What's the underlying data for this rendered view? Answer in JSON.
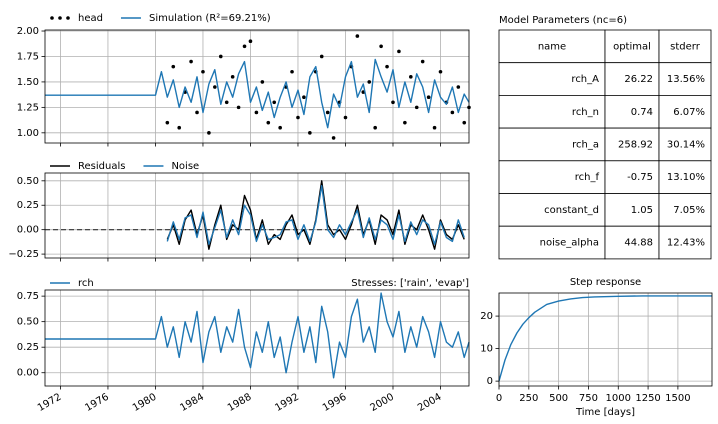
{
  "chart_data": [
    {
      "type": "line",
      "x": [
        1970.7,
        1980.0,
        1980.5,
        1981.0,
        1981.5,
        1982.0,
        1982.5,
        1983.0,
        1983.5,
        1984.0,
        1984.5,
        1985.0,
        1985.5,
        1986.0,
        1986.5,
        1987.0,
        1987.5,
        1988.0,
        1988.5,
        1989.0,
        1989.5,
        1990.0,
        1990.5,
        1991.0,
        1991.5,
        1992.0,
        1992.5,
        1993.0,
        1993.5,
        1994.0,
        1994.5,
        1995.0,
        1995.5,
        1996.0,
        1996.5,
        1997.0,
        1997.5,
        1998.0,
        1998.5,
        1999.0,
        1999.5,
        2000.0,
        2000.5,
        2001.0,
        2001.5,
        2002.0,
        2002.5,
        2003.0,
        2003.5,
        2004.0,
        2004.5,
        2005.0,
        2005.5,
        2006.0,
        2006.4
      ],
      "series": [
        {
          "name": "head",
          "color": "#000000",
          "style": "dots",
          "values": [
            null,
            null,
            null,
            1.1,
            1.65,
            1.05,
            1.4,
            1.7,
            1.2,
            1.6,
            1.0,
            1.45,
            1.75,
            1.3,
            1.55,
            1.25,
            1.85,
            1.9,
            1.2,
            1.5,
            1.1,
            1.3,
            1.05,
            1.45,
            1.6,
            1.15,
            1.35,
            1.0,
            1.6,
            1.75,
            1.2,
            0.95,
            1.3,
            1.15,
            1.65,
            1.95,
            1.4,
            1.5,
            1.05,
            1.85,
            1.65,
            1.3,
            1.8,
            1.1,
            1.55,
            1.25,
            1.7,
            1.35,
            1.05,
            1.6,
            1.3,
            1.2,
            1.45,
            1.1,
            1.25
          ]
        },
        {
          "name": "Simulation (R²=69.21%)",
          "color": "#1f77b4",
          "style": "line",
          "values": [
            1.37,
            1.37,
            1.6,
            1.35,
            1.52,
            1.25,
            1.45,
            1.3,
            1.55,
            1.2,
            1.48,
            1.62,
            1.28,
            1.5,
            1.35,
            1.58,
            1.7,
            1.3,
            1.45,
            1.22,
            1.4,
            1.15,
            1.35,
            1.5,
            1.25,
            1.42,
            1.18,
            1.55,
            1.65,
            1.3,
            1.05,
            1.38,
            1.25,
            1.55,
            1.7,
            1.35,
            1.48,
            1.2,
            1.72,
            1.55,
            1.4,
            1.62,
            1.25,
            1.5,
            1.3,
            1.58,
            1.45,
            1.2,
            1.52,
            1.35,
            1.28,
            1.45,
            1.2,
            1.38,
            1.3
          ]
        }
      ],
      "xlim": [
        1970.7,
        2006.4
      ],
      "xticks": [
        1972,
        1976,
        1980,
        1984,
        1988,
        1992,
        1996,
        2000,
        2004
      ],
      "ylim": [
        0.9,
        2.01
      ],
      "yticks": [
        {
          "value": 1.0,
          "label": "1.00"
        },
        {
          "value": 1.25,
          "label": "1.25"
        },
        {
          "value": 1.5,
          "label": "1.50"
        },
        {
          "value": 1.75,
          "label": "1.75"
        },
        {
          "value": 2.0,
          "label": "2.00"
        }
      ],
      "grid": true,
      "legend": true
    },
    {
      "type": "line",
      "x": [
        1981.0,
        1981.5,
        1982.0,
        1982.5,
        1983.0,
        1983.5,
        1984.0,
        1984.5,
        1985.0,
        1985.5,
        1986.0,
        1986.5,
        1987.0,
        1987.5,
        1988.0,
        1988.5,
        1989.0,
        1989.5,
        1990.0,
        1990.5,
        1991.0,
        1991.5,
        1992.0,
        1992.5,
        1993.0,
        1993.5,
        1994.0,
        1994.5,
        1995.0,
        1995.5,
        1996.0,
        1996.5,
        1997.0,
        1997.5,
        1998.0,
        1998.5,
        1999.0,
        1999.5,
        2000.0,
        2000.5,
        2001.0,
        2001.5,
        2002.0,
        2002.5,
        2003.0,
        2003.5,
        2004.0,
        2004.5,
        2005.0,
        2005.5,
        2006.0
      ],
      "series": [
        {
          "name": "Residuals",
          "color": "#000000",
          "style": "line",
          "values": [
            -0.1,
            0.05,
            -0.15,
            0.1,
            0.2,
            -0.05,
            0.15,
            -0.2,
            0.05,
            0.25,
            -0.1,
            0.05,
            0.0,
            0.35,
            0.2,
            -0.1,
            0.1,
            -0.15,
            -0.05,
            -0.1,
            0.05,
            0.15,
            -0.05,
            0.0,
            -0.15,
            0.1,
            0.5,
            0.05,
            -0.05,
            0.0,
            -0.1,
            0.05,
            0.25,
            -0.05,
            0.1,
            -0.15,
            0.15,
            0.1,
            -0.05,
            0.2,
            -0.15,
            0.05,
            0.0,
            0.15,
            0.0,
            -0.2,
            0.1,
            -0.05,
            -0.1,
            0.05,
            -0.1
          ]
        },
        {
          "name": "Noise",
          "color": "#1f77b4",
          "style": "line",
          "values": [
            -0.12,
            0.08,
            -0.1,
            0.12,
            0.15,
            -0.08,
            0.18,
            -0.15,
            0.02,
            0.2,
            -0.08,
            0.1,
            -0.05,
            0.25,
            0.15,
            -0.12,
            0.05,
            -0.1,
            -0.08,
            -0.05,
            0.08,
            0.1,
            -0.1,
            0.05,
            -0.12,
            0.08,
            0.45,
            0.0,
            -0.08,
            0.05,
            -0.05,
            0.08,
            0.2,
            -0.08,
            0.12,
            -0.1,
            0.1,
            0.05,
            -0.1,
            0.15,
            -0.12,
            0.08,
            -0.05,
            0.1,
            0.05,
            -0.15,
            0.08,
            -0.08,
            -0.12,
            0.1,
            -0.08
          ]
        }
      ],
      "xlim": [
        1970.7,
        2006.4
      ],
      "xticks": [
        1972,
        1976,
        1980,
        1984,
        1988,
        1992,
        1996,
        2000,
        2004
      ],
      "ylim": [
        -0.29,
        0.58
      ],
      "yticks": [
        {
          "value": -0.25,
          "label": "−0.25"
        },
        {
          "value": 0.0,
          "label": "0.00"
        },
        {
          "value": 0.25,
          "label": "0.25"
        },
        {
          "value": 0.5,
          "label": "0.50"
        }
      ],
      "grid": true,
      "legend": true
    },
    {
      "type": "line",
      "annotation": "Stresses: ['rain', 'evap']",
      "x": [
        1970.7,
        1980.0,
        1980.5,
        1981.0,
        1981.5,
        1982.0,
        1982.5,
        1983.0,
        1983.5,
        1984.0,
        1984.5,
        1985.0,
        1985.5,
        1986.0,
        1986.5,
        1987.0,
        1987.5,
        1988.0,
        1988.5,
        1989.0,
        1989.5,
        1990.0,
        1990.5,
        1991.0,
        1991.5,
        1992.0,
        1992.5,
        1993.0,
        1993.5,
        1994.0,
        1994.5,
        1995.0,
        1995.5,
        1996.0,
        1996.5,
        1997.0,
        1997.5,
        1998.0,
        1998.5,
        1999.0,
        1999.5,
        2000.0,
        2000.5,
        2001.0,
        2001.5,
        2002.0,
        2002.5,
        2003.0,
        2003.5,
        2004.0,
        2004.5,
        2005.0,
        2005.5,
        2006.0,
        2006.4
      ],
      "series": [
        {
          "name": "rch",
          "color": "#1f77b4",
          "style": "line",
          "values": [
            0.33,
            0.33,
            0.55,
            0.25,
            0.45,
            0.15,
            0.5,
            0.3,
            0.6,
            0.1,
            0.4,
            0.55,
            0.2,
            0.45,
            0.3,
            0.62,
            0.25,
            0.05,
            0.4,
            0.2,
            0.5,
            0.15,
            0.35,
            0.0,
            0.3,
            0.55,
            0.2,
            0.45,
            0.1,
            0.65,
            0.4,
            -0.05,
            0.3,
            0.15,
            0.55,
            0.72,
            0.3,
            0.45,
            0.2,
            0.78,
            0.5,
            0.35,
            0.6,
            0.2,
            0.45,
            0.25,
            0.55,
            0.4,
            0.15,
            0.5,
            0.3,
            0.25,
            0.4,
            0.15,
            0.3
          ]
        }
      ],
      "xlim": [
        1970.7,
        2006.4
      ],
      "xticks": [
        1972,
        1976,
        1980,
        1984,
        1988,
        1992,
        1996,
        2000,
        2004
      ],
      "ylim": [
        -0.13,
        0.81
      ],
      "yticks": [
        {
          "value": 0.0,
          "label": "0.00"
        },
        {
          "value": 0.25,
          "label": "0.25"
        },
        {
          "value": 0.5,
          "label": "0.50"
        },
        {
          "value": 0.75,
          "label": "0.75"
        }
      ],
      "grid": true,
      "legend": true
    },
    {
      "type": "line",
      "title": "Step response",
      "x_label": "Time [days]",
      "x": [
        0,
        50,
        100,
        150,
        200,
        250,
        300,
        400,
        500,
        600,
        700,
        800,
        1000,
        1200,
        1400,
        1600,
        1786
      ],
      "series": [
        {
          "color": "#1f77b4",
          "style": "line",
          "values": [
            0,
            6.5,
            11.3,
            14.8,
            17.5,
            19.5,
            21.2,
            23.6,
            24.6,
            25.3,
            25.7,
            25.9,
            26.1,
            26.2,
            26.2,
            26.2,
            26.22
          ]
        }
      ],
      "xlim": [
        0,
        1786
      ],
      "xticks": [
        0,
        250,
        500,
        750,
        1000,
        1250,
        1500
      ],
      "ylim": [
        -1.5,
        27.1
      ],
      "yticks": [
        0,
        10,
        20
      ],
      "grid": true,
      "legend": false
    }
  ],
  "table": {
    "title": "Model Parameters (nc=6)",
    "columns": [
      "name",
      "optimal",
      "stderr"
    ],
    "rows": [
      [
        "rch_A",
        "26.22",
        "13.56%"
      ],
      [
        "rch_n",
        "0.74",
        "6.07%"
      ],
      [
        "rch_a",
        "258.92",
        "30.14%"
      ],
      [
        "rch_f",
        "-0.75",
        "13.10%"
      ],
      [
        "constant_d",
        "1.05",
        "7.05%"
      ],
      [
        "noise_alpha",
        "44.88",
        "12.43%"
      ]
    ]
  }
}
